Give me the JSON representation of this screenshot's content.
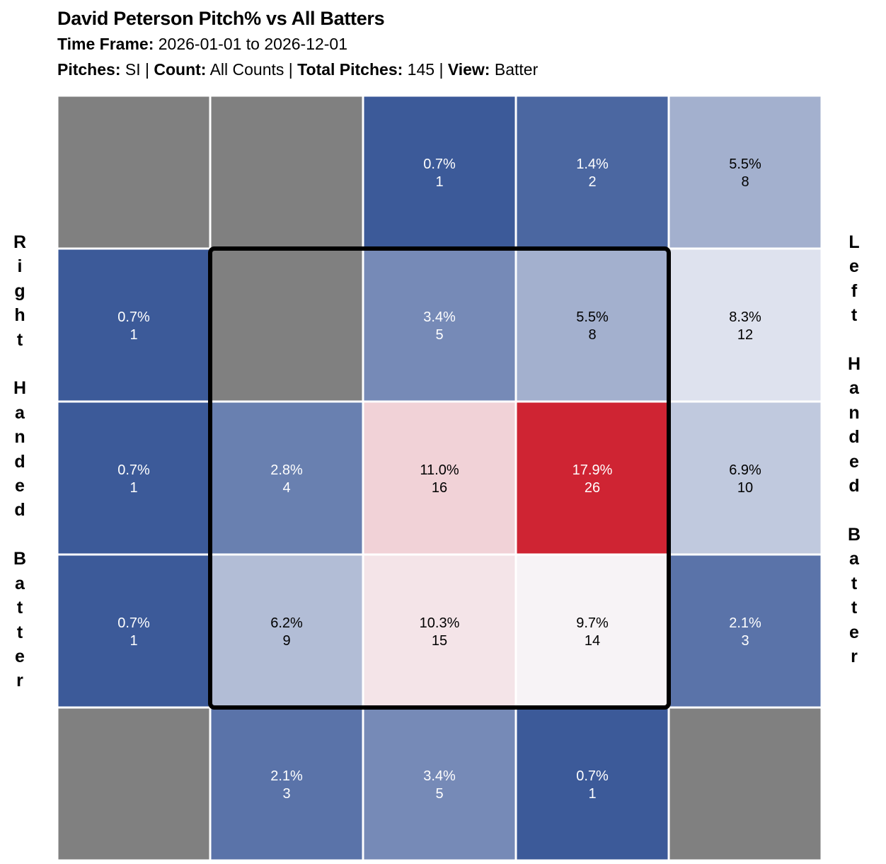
{
  "header": {
    "title": "David Peterson Pitch% vs All Batters",
    "time_frame_label": "Time Frame:",
    "time_frame_value": "2026-01-01 to 2026-12-01",
    "pitches_label": "Pitches:",
    "pitches_value": "SI",
    "count_label": "Count:",
    "count_value": "All Counts",
    "total_label": "Total Pitches:",
    "total_value": "145",
    "view_label": "View:",
    "view_value": "Batter",
    "separator": "|"
  },
  "side_labels": {
    "left": "Right\nHanded\nBatter",
    "right": "Left\nHanded\nBatter"
  },
  "chart_data": {
    "type": "heatmap",
    "title": "David Peterson Pitch% vs All Batters",
    "rows": 5,
    "cols": 5,
    "strike_zone": {
      "row_start": 1,
      "row_end": 3,
      "col_start": 1,
      "col_end": 3
    },
    "colors": {
      "empty": "#808080",
      "low": "#3c5a99",
      "mid": "#f8f8fb",
      "high": "#cf2433",
      "grid_line": "#ffffff",
      "zone_border": "#000000"
    },
    "color_scale": {
      "min": 0.7,
      "mid": 9.5,
      "max": 17.9
    },
    "cells": [
      [
        {
          "pct": null,
          "count": null
        },
        {
          "pct": null,
          "count": null
        },
        {
          "pct": 0.7,
          "pct_label": "0.7%",
          "count": "1"
        },
        {
          "pct": 1.4,
          "pct_label": "1.4%",
          "count": "2"
        },
        {
          "pct": 5.5,
          "pct_label": "5.5%",
          "count": "8"
        }
      ],
      [
        {
          "pct": 0.7,
          "pct_label": "0.7%",
          "count": "1"
        },
        {
          "pct": null,
          "count": null
        },
        {
          "pct": 3.4,
          "pct_label": "3.4%",
          "count": "5"
        },
        {
          "pct": 5.5,
          "pct_label": "5.5%",
          "count": "8"
        },
        {
          "pct": 8.3,
          "pct_label": "8.3%",
          "count": "12"
        }
      ],
      [
        {
          "pct": 0.7,
          "pct_label": "0.7%",
          "count": "1"
        },
        {
          "pct": 2.8,
          "pct_label": "2.8%",
          "count": "4"
        },
        {
          "pct": 11.0,
          "pct_label": "11.0%",
          "count": "16"
        },
        {
          "pct": 17.9,
          "pct_label": "17.9%",
          "count": "26"
        },
        {
          "pct": 6.9,
          "pct_label": "6.9%",
          "count": "10"
        }
      ],
      [
        {
          "pct": 0.7,
          "pct_label": "0.7%",
          "count": "1"
        },
        {
          "pct": 6.2,
          "pct_label": "6.2%",
          "count": "9"
        },
        {
          "pct": 10.3,
          "pct_label": "10.3%",
          "count": "15"
        },
        {
          "pct": 9.7,
          "pct_label": "9.7%",
          "count": "14"
        },
        {
          "pct": 2.1,
          "pct_label": "2.1%",
          "count": "3"
        }
      ],
      [
        {
          "pct": null,
          "count": null
        },
        {
          "pct": 2.1,
          "pct_label": "2.1%",
          "count": "3"
        },
        {
          "pct": 3.4,
          "pct_label": "3.4%",
          "count": "5"
        },
        {
          "pct": 0.7,
          "pct_label": "0.7%",
          "count": "1"
        },
        {
          "pct": null,
          "count": null
        }
      ]
    ]
  }
}
